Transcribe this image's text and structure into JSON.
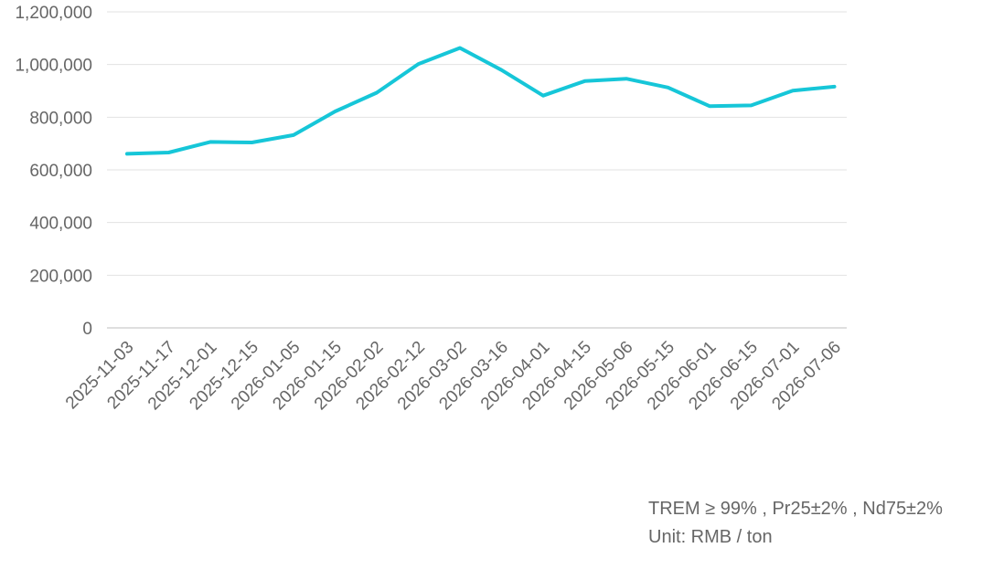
{
  "chart_data": {
    "type": "line",
    "categories": [
      "2025-11-03",
      "2025-11-17",
      "2025-12-01",
      "2025-12-15",
      "2026-01-05",
      "2026-01-15",
      "2026-02-02",
      "2026-02-12",
      "2026-03-02",
      "2026-03-16",
      "2026-04-01",
      "2026-04-15",
      "2026-05-06",
      "2026-05-15",
      "2026-06-01",
      "2026-06-15",
      "2026-07-01",
      "2026-07-06"
    ],
    "series": [
      {
        "values": [
          661000,
          666000,
          706000,
          704000,
          732000,
          822000,
          893000,
          1002000,
          1063000,
          979000,
          882000,
          937000,
          946000,
          913000,
          842000,
          845000,
          901000,
          916000
        ]
      }
    ],
    "ylim": [
      0,
      1200000
    ],
    "yticks": [
      0,
      200000,
      400000,
      600000,
      800000,
      1000000,
      1200000
    ],
    "ytick_labels": [
      "0",
      "200,000",
      "400,000",
      "600,000",
      "800,000",
      "1,000,000",
      "1,200,000"
    ],
    "grid": true,
    "colors": {
      "line": "#16c6d8",
      "grid": "#e2e2e2",
      "axis": "#bfbfbf",
      "text": "#666666"
    }
  },
  "notes": {
    "spec": "TREM ≥ 99% , Pr25±2% , Nd75±2%",
    "unit": "Unit: RMB / ton"
  }
}
